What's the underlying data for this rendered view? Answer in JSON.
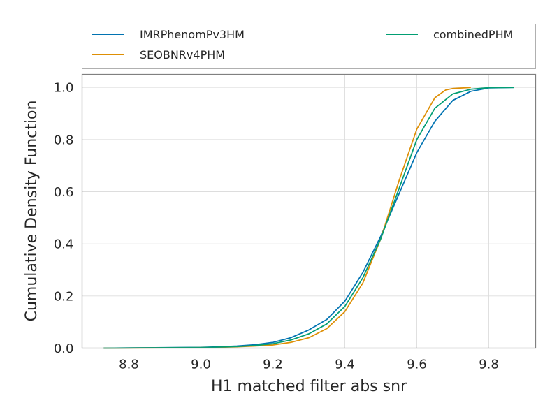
{
  "chart_data": {
    "type": "line",
    "title": "",
    "xlabel": "H1 matched filter abs snr",
    "ylabel": "Cumulative Density Function",
    "xlim": [
      8.67,
      9.93
    ],
    "ylim": [
      0.0,
      1.05
    ],
    "xticks": [
      8.8,
      9.0,
      9.2,
      9.4,
      9.6,
      9.8
    ],
    "xtick_labels": [
      "8.8",
      "9.0",
      "9.2",
      "9.4",
      "9.6",
      "9.8"
    ],
    "yticks": [
      0.0,
      0.2,
      0.4,
      0.6,
      0.8,
      1.0
    ],
    "ytick_labels": [
      "0.0",
      "0.2",
      "0.4",
      "0.6",
      "0.8",
      "1.0"
    ],
    "grid": true,
    "legend_position": "top, above plot",
    "legend_columns": 2,
    "series": [
      {
        "name": "IMRPhenomPv3HM",
        "color": "#0173b2",
        "x": [
          8.73,
          8.9,
          9.0,
          9.05,
          9.1,
          9.15,
          9.2,
          9.25,
          9.3,
          9.35,
          9.4,
          9.45,
          9.5,
          9.55,
          9.6,
          9.65,
          9.7,
          9.75,
          9.8,
          9.87
        ],
        "y": [
          0.0,
          0.002,
          0.003,
          0.005,
          0.008,
          0.013,
          0.022,
          0.04,
          0.07,
          0.11,
          0.18,
          0.29,
          0.43,
          0.59,
          0.75,
          0.87,
          0.95,
          0.985,
          0.998,
          1.0
        ]
      },
      {
        "name": "SEOBNRv4PHM",
        "color": "#de8f05",
        "x": [
          8.73,
          8.9,
          9.0,
          9.05,
          9.1,
          9.15,
          9.2,
          9.25,
          9.3,
          9.35,
          9.4,
          9.45,
          9.5,
          9.55,
          9.6,
          9.65,
          9.68,
          9.7,
          9.75
        ],
        "y": [
          0.0,
          0.001,
          0.002,
          0.003,
          0.005,
          0.008,
          0.012,
          0.022,
          0.04,
          0.075,
          0.14,
          0.25,
          0.42,
          0.64,
          0.84,
          0.96,
          0.99,
          0.996,
          1.0
        ]
      },
      {
        "name": "combinedPHM",
        "color": "#029e73",
        "x": [
          8.73,
          8.9,
          9.0,
          9.05,
          9.1,
          9.15,
          9.2,
          9.25,
          9.3,
          9.35,
          9.4,
          9.45,
          9.5,
          9.55,
          9.6,
          9.65,
          9.7,
          9.75,
          9.8,
          9.87
        ],
        "y": [
          0.0,
          0.0015,
          0.0025,
          0.004,
          0.006,
          0.01,
          0.017,
          0.031,
          0.055,
          0.093,
          0.16,
          0.27,
          0.42,
          0.61,
          0.8,
          0.92,
          0.975,
          0.993,
          0.999,
          1.0
        ]
      }
    ]
  }
}
